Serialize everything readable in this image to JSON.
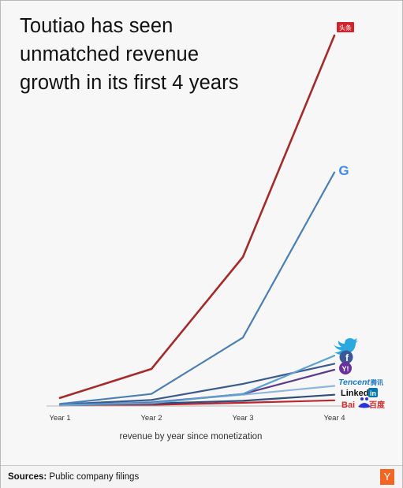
{
  "title_lines": [
    "Toutiao has seen",
    "unmatched revenue",
    "growth in its first 4 years"
  ],
  "footer": {
    "sources_label": "Sources:",
    "sources_text": "Public company filings",
    "brand_logo": "Y"
  },
  "chart_data": {
    "type": "line",
    "title": "Toutiao has seen unmatched revenue growth in its first 4 years",
    "xlabel": "revenue by year since monetization",
    "ylabel": "",
    "categories": [
      "Year 1",
      "Year 2",
      "Year 3",
      "Year 4"
    ],
    "y_axis_labels": false,
    "grid": false,
    "legend": "logos at line ends",
    "series": [
      {
        "name": "头条",
        "color": "#a52a2a",
        "values": [
          2.0,
          9.2,
          37.0,
          92.0
        ]
      },
      {
        "name": "Google",
        "color": "#4a7fb5",
        "values": [
          0.5,
          3.0,
          17.0,
          58.0
        ]
      },
      {
        "name": "Twitter",
        "color": "#5ea1cf",
        "values": [
          0.3,
          0.7,
          3.0,
          12.5
        ]
      },
      {
        "name": "Facebook",
        "color": "#3a5a8c",
        "values": [
          0.4,
          1.5,
          5.5,
          10.5
        ]
      },
      {
        "name": "Yahoo!",
        "color": "#5a3a8a",
        "values": [
          0.2,
          0.8,
          3.0,
          9.0
        ]
      },
      {
        "name": "Tencent 腾讯",
        "color": "#8fb4dd",
        "values": [
          0.3,
          1.0,
          2.8,
          5.0
        ]
      },
      {
        "name": "LinkedIn",
        "color": "#2d4e7a",
        "values": [
          0.3,
          0.6,
          1.3,
          2.8
        ]
      },
      {
        "name": "Bai du 百度",
        "color": "#c0262d",
        "values": [
          0.1,
          0.3,
          0.8,
          1.4
        ]
      }
    ],
    "brand_text": {
      "toutiao": "头条",
      "google": "G",
      "twitter": "twitter bird",
      "facebook": "f",
      "yahoo": "Y!",
      "tencent": "Tencent",
      "tencent_cn": "腾讯",
      "linkedin": "Linked",
      "linkedin_in": "in",
      "baidu": "Bai",
      "baidu_cn": "百度"
    }
  }
}
